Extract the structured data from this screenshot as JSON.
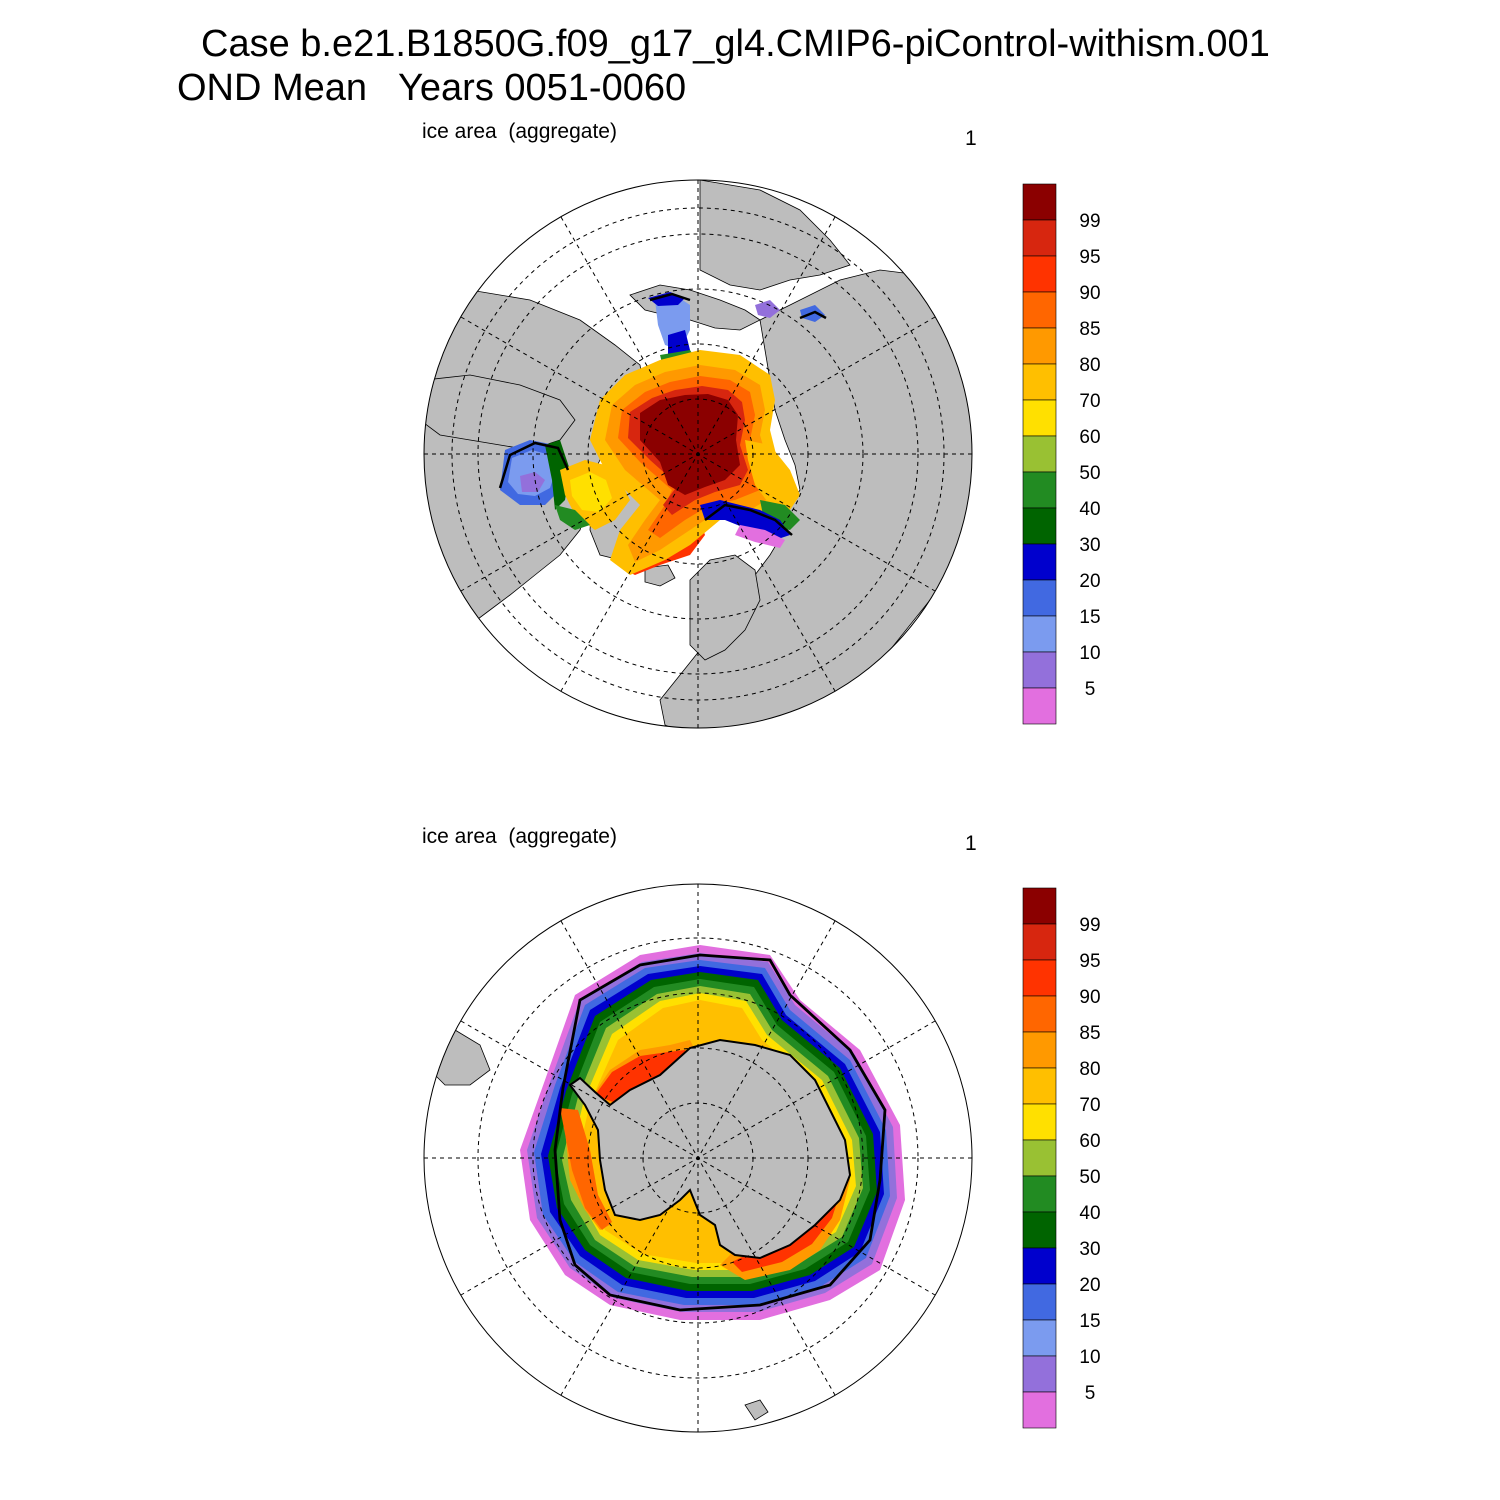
{
  "title": {
    "line1": "Case b.e21.B1850G.f09_g17_gl4.CMIP6-piControl-withism.001",
    "line2": "OND Mean   Years 0051-0060"
  },
  "panels": [
    {
      "id": "north",
      "variable_label": "ice area  (aggregate)",
      "units_label": "1"
    },
    {
      "id": "south",
      "variable_label": "ice area  (aggregate)",
      "units_label": "1"
    }
  ],
  "colorbar": {
    "labels": [
      "99",
      "95",
      "90",
      "85",
      "80",
      "70",
      "60",
      "50",
      "40",
      "30",
      "20",
      "15",
      "10",
      "5"
    ],
    "colors": [
      "#8b0000",
      "#d7260f",
      "#ff3300",
      "#ff6600",
      "#ff9900",
      "#ffbf00",
      "#ffe000",
      "#99c133",
      "#228b22",
      "#006400",
      "#0000cd",
      "#4169e1",
      "#7b9bef",
      "#9370db",
      "#e26fdf"
    ]
  },
  "map_style": {
    "land_color": "#bdbdbd",
    "ocean_color": "#ffffff",
    "contour_color": "#000000"
  }
}
